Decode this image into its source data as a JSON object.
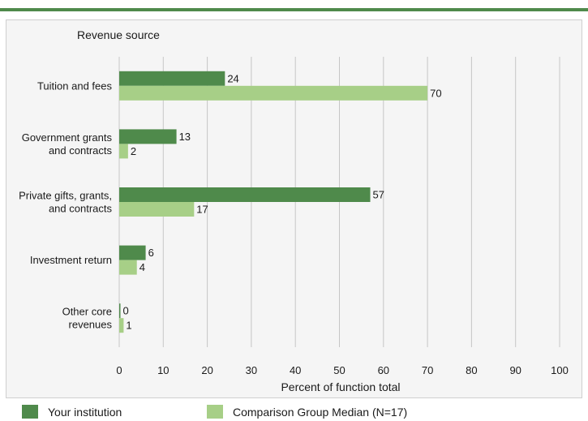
{
  "colors": {
    "series_1": "#4f8a4b",
    "series_2": "#a7cf87",
    "grid": "#c6c6c6",
    "panel": "#f5f5f5"
  },
  "chart_data": {
    "type": "bar",
    "orientation": "horizontal",
    "category_axis_title": "Revenue source",
    "xlabel": "Percent of function total",
    "xlim": [
      0,
      100
    ],
    "xticks": [
      0,
      10,
      20,
      30,
      40,
      50,
      60,
      70,
      80,
      90,
      100
    ],
    "grid": true,
    "legend_position": "bottom",
    "categories": [
      [
        "Tuition and fees"
      ],
      [
        "Government grants",
        "and contracts"
      ],
      [
        "Private gifts, grants,",
        "and contracts"
      ],
      [
        "Investment return"
      ],
      [
        "Other core",
        "revenues"
      ]
    ],
    "series": [
      {
        "name": "Your institution",
        "values": [
          24,
          13,
          57,
          6,
          0
        ]
      },
      {
        "name": "Comparison Group Median (N=17)",
        "values": [
          70,
          2,
          17,
          4,
          1
        ]
      }
    ]
  }
}
